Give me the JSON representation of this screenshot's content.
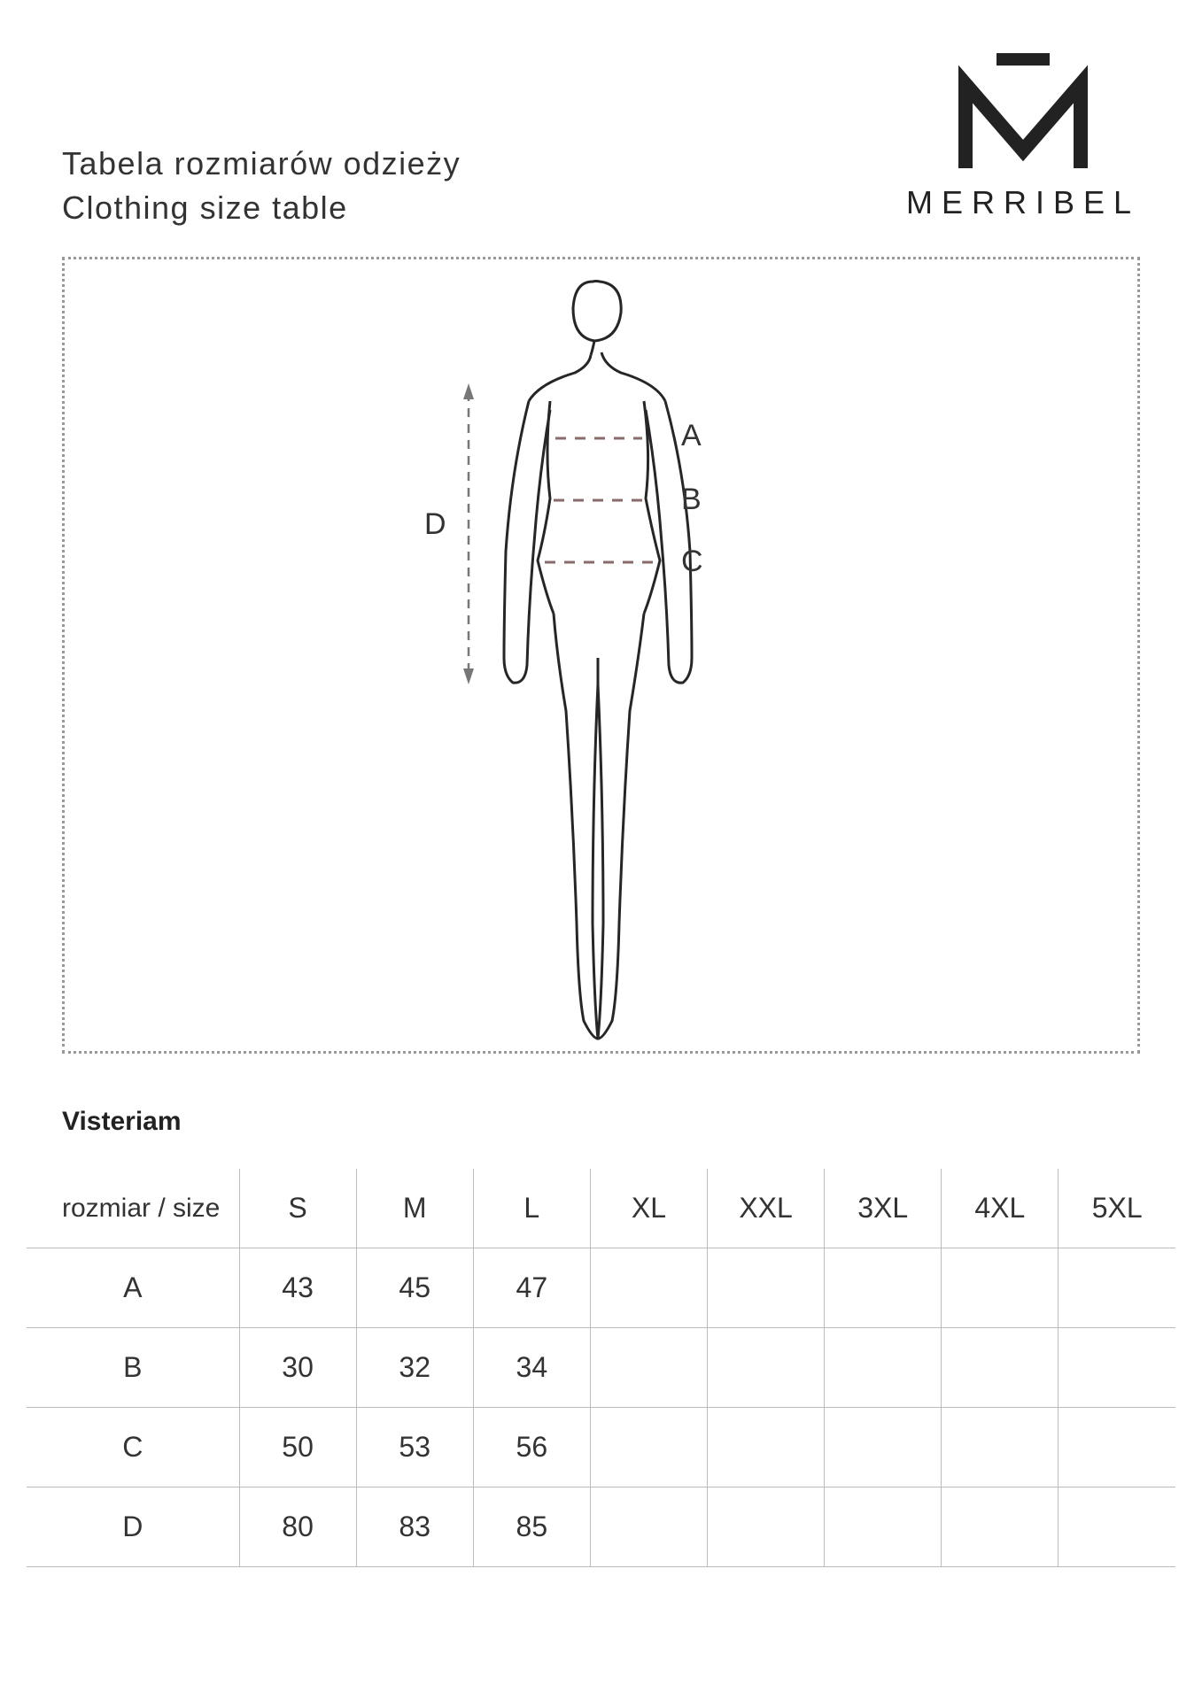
{
  "header": {
    "title_pl": "Tabela rozmiarów odzieży",
    "title_en": "Clothing size table",
    "brand": "MERRIBEL"
  },
  "diagram": {
    "labels": {
      "A": "A",
      "B": "B",
      "C": "C",
      "D": "D"
    },
    "stroke_color": "#262626",
    "measure_color": "#8a6b6b",
    "arrow_color": "#777777",
    "label_fontsize": 34,
    "border_color_dotted": "#999999"
  },
  "product": {
    "name": "Visteriam"
  },
  "size_table": {
    "header_label": "rozmiar / size",
    "columns": [
      "S",
      "M",
      "L",
      "XL",
      "XXL",
      "3XL",
      "4XL",
      "5XL"
    ],
    "rows": [
      {
        "label": "A",
        "values": [
          "43",
          "45",
          "47",
          "",
          "",
          "",
          "",
          ""
        ]
      },
      {
        "label": "B",
        "values": [
          "30",
          "32",
          "34",
          "",
          "",
          "",
          "",
          ""
        ]
      },
      {
        "label": "C",
        "values": [
          "50",
          "53",
          "56",
          "",
          "",
          "",
          "",
          ""
        ]
      },
      {
        "label": "D",
        "values": [
          "80",
          "83",
          "85",
          "",
          "",
          "",
          "",
          ""
        ]
      }
    ],
    "cell_fontsize": 32,
    "border_color": "#bbbbbb",
    "text_color": "#333333"
  },
  "colors": {
    "background": "#ffffff",
    "text": "#262626"
  }
}
